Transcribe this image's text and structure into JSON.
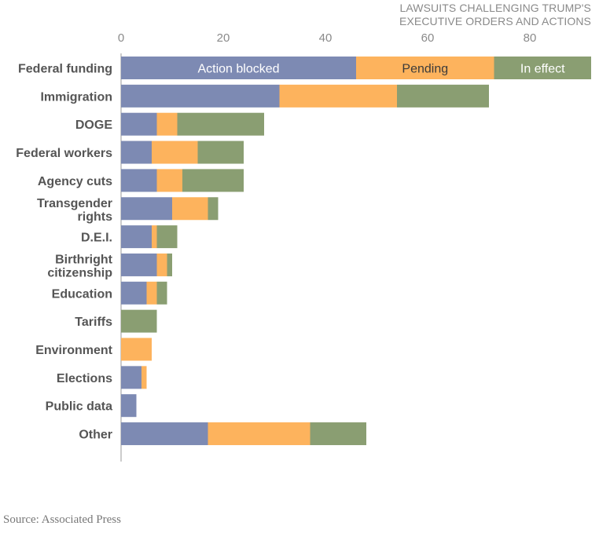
{
  "chart_data": {
    "type": "bar",
    "orientation": "horizontal",
    "stacked": true,
    "title": "LAWSUITS CHALLENGING TRUMP'S EXECUTIVE ORDERS AND ACTIONS",
    "title_lines": [
      "LAWSUITS CHALLENGING TRUMP'S",
      "EXECUTIVE ORDERS AND ACTIONS"
    ],
    "categories": [
      "Federal funding",
      "Immigration",
      "DOGE",
      "Federal workers",
      "Agency cuts",
      "Transgender rights",
      "D.E.I.",
      "Birthright citizenship",
      "Education",
      "Tariffs",
      "Environment",
      "Elections",
      "Public data",
      "Other"
    ],
    "category_lines": [
      [
        "Federal funding"
      ],
      [
        "Immigration"
      ],
      [
        "DOGE"
      ],
      [
        "Federal workers"
      ],
      [
        "Agency cuts"
      ],
      [
        "Transgender",
        "rights"
      ],
      [
        "D.E.I."
      ],
      [
        "Birthright",
        "citizenship"
      ],
      [
        "Education"
      ],
      [
        "Tariffs"
      ],
      [
        "Environment"
      ],
      [
        "Elections"
      ],
      [
        "Public data"
      ],
      [
        "Other"
      ]
    ],
    "series": [
      {
        "name": "Action blocked",
        "color": "#7d8ab3",
        "values": [
          46,
          31,
          7,
          6,
          7,
          10,
          6,
          7,
          5,
          0,
          0,
          4,
          3,
          17
        ]
      },
      {
        "name": "Pending",
        "color": "#fdb35d",
        "values": [
          27,
          23,
          4,
          9,
          5,
          7,
          1,
          2,
          2,
          0,
          6,
          1,
          0,
          20
        ]
      },
      {
        "name": "In effect",
        "color": "#8a9e72",
        "values": [
          19,
          18,
          17,
          9,
          12,
          2,
          4,
          1,
          2,
          7,
          0,
          0,
          0,
          11
        ]
      }
    ],
    "xlim": [
      0,
      92
    ],
    "xticks": [
      "0",
      "20",
      "40",
      "60",
      "80"
    ],
    "xtick_values": [
      0,
      20,
      40,
      60,
      80
    ],
    "legend": "inline labels on first bar",
    "grid": false
  },
  "source": "Source: Associated Press"
}
